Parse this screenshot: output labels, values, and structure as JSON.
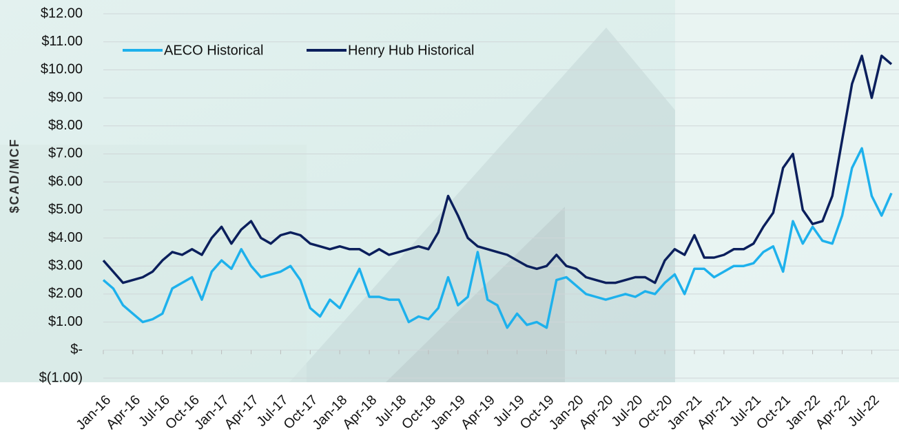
{
  "chart_data": {
    "type": "line",
    "y_label": "$CAD/MCF",
    "categories": [
      "Jan-16",
      null,
      null,
      "Apr-16",
      null,
      null,
      "Jul-16",
      null,
      null,
      "Oct-16",
      null,
      null,
      "Jan-17",
      null,
      null,
      "Apr-17",
      null,
      null,
      "Jul-17",
      null,
      null,
      "Oct-17",
      null,
      null,
      "Jan-18",
      null,
      null,
      "Apr-18",
      null,
      null,
      "Jul-18",
      null,
      null,
      "Oct-18",
      null,
      null,
      "Jan-19",
      null,
      null,
      "Apr-19",
      null,
      null,
      "Jul-19",
      null,
      null,
      "Oct-19",
      null,
      null,
      "Jan-20",
      null,
      null,
      "Apr-20",
      null,
      null,
      "Jul-20",
      null,
      null,
      "Oct-20",
      null,
      null,
      "Jan-21",
      null,
      null,
      "Apr-21",
      null,
      null,
      "Jul-21",
      null,
      null,
      "Oct-21",
      null,
      null,
      "Jan-22",
      null,
      null,
      "Apr-22",
      null,
      null,
      "Jul-22",
      null,
      null
    ],
    "series": [
      {
        "name": "AECO Historical",
        "color": "#1eb1ec",
        "values": [
          2.5,
          2.2,
          1.6,
          1.3,
          1.0,
          1.1,
          1.3,
          2.2,
          2.4,
          2.6,
          1.8,
          2.8,
          3.2,
          2.9,
          3.6,
          3.0,
          2.6,
          2.7,
          2.8,
          3.0,
          2.5,
          1.5,
          1.2,
          1.8,
          1.5,
          2.2,
          2.9,
          1.9,
          1.9,
          1.8,
          1.8,
          1.0,
          1.2,
          1.1,
          1.5,
          2.6,
          1.6,
          1.9,
          3.5,
          1.8,
          1.6,
          0.8,
          1.3,
          0.9,
          1.0,
          0.8,
          2.5,
          2.6,
          2.3,
          2.0,
          1.9,
          1.8,
          1.9,
          2.0,
          1.9,
          2.1,
          2.0,
          2.4,
          2.7,
          2.0,
          2.9,
          2.9,
          2.6,
          2.8,
          3.0,
          3.0,
          3.1,
          3.5,
          3.7,
          2.8,
          4.6,
          3.8,
          4.4,
          3.9,
          3.8,
          4.8,
          6.5,
          7.2,
          5.5,
          4.8,
          5.6
        ]
      },
      {
        "name": "Henry Hub Historical",
        "color": "#0b1f5c",
        "values": [
          3.2,
          2.8,
          2.4,
          2.5,
          2.6,
          2.8,
          3.2,
          3.5,
          3.4,
          3.6,
          3.4,
          4.0,
          4.4,
          3.8,
          4.3,
          4.6,
          4.0,
          3.8,
          4.1,
          4.2,
          4.1,
          3.8,
          3.7,
          3.6,
          3.7,
          3.6,
          3.6,
          3.4,
          3.6,
          3.4,
          3.5,
          3.6,
          3.7,
          3.6,
          4.2,
          5.5,
          4.8,
          4.0,
          3.7,
          3.6,
          3.5,
          3.4,
          3.2,
          3.0,
          2.9,
          3.0,
          3.4,
          3.0,
          2.9,
          2.6,
          2.5,
          2.4,
          2.4,
          2.5,
          2.6,
          2.6,
          2.4,
          3.2,
          3.6,
          3.4,
          4.1,
          3.3,
          3.3,
          3.4,
          3.6,
          3.6,
          3.8,
          4.4,
          4.9,
          6.5,
          7.0,
          5.0,
          4.5,
          4.6,
          5.5,
          7.5,
          9.5,
          10.5,
          9.0,
          10.5,
          10.2
        ]
      }
    ],
    "ylim": [
      -1,
      12
    ],
    "yticks": [
      {
        "value": -1,
        "label": "$(1.00)"
      },
      {
        "value": 0,
        "label": "$-"
      },
      {
        "value": 1,
        "label": "$1.00"
      },
      {
        "value": 2,
        "label": "$2.00"
      },
      {
        "value": 3,
        "label": "$3.00"
      },
      {
        "value": 4,
        "label": "$4.00"
      },
      {
        "value": 5,
        "label": "$5.00"
      },
      {
        "value": 6,
        "label": "$6.00"
      },
      {
        "value": 7,
        "label": "$7.00"
      },
      {
        "value": 8,
        "label": "$8.00"
      },
      {
        "value": 9,
        "label": "$9.00"
      },
      {
        "value": 10,
        "label": "$10.00"
      },
      {
        "value": 11,
        "label": "$11.00"
      },
      {
        "value": 12,
        "label": "$12.00"
      }
    ],
    "grid": true,
    "legend": "top-left"
  }
}
